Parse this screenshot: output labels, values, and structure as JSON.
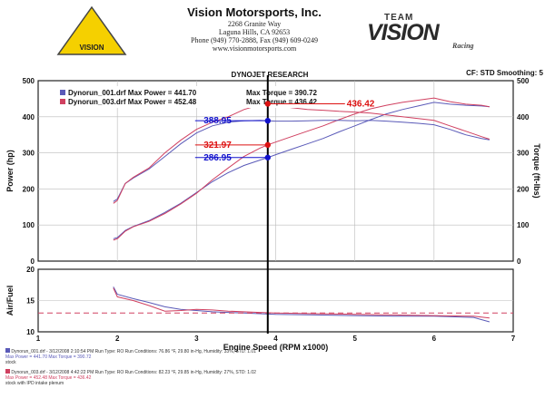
{
  "header": {
    "company": "Vision Motorsports, Inc.",
    "address1": "2268 Granite Way",
    "address2": "Laguna Hills, CA 92653",
    "phone": "Phone (949) 770-2888, Fax (949) 609-0249",
    "web": "www.visionmotorsports.com",
    "logo_text": "VISION",
    "team_label": "TEAM",
    "team_brand": "VISION",
    "team_sub": "Racing",
    "chart_source": "DYNOJET RESEARCH",
    "cf_info": "CF: STD  Smoothing: 5"
  },
  "chart_data": [
    {
      "type": "line",
      "title": "DYNOJET RESEARCH",
      "xlabel": "Engine Speed (RPM x1000)",
      "ylabel": "Power (hp)",
      "y2label": "Torque (ft-lbs)",
      "xlim": [
        1,
        7
      ],
      "ylim": [
        0,
        500
      ],
      "y2lim": [
        0,
        500
      ],
      "xticks": [
        1,
        2,
        3,
        4,
        5,
        6,
        7
      ],
      "yticks": [
        0,
        100,
        200,
        300,
        400,
        500
      ],
      "legend": [
        {
          "file": "Dynorun_001.drf",
          "max_power_label": "Max Power =",
          "max_power": "441.70",
          "max_torque_label": "Max Torque =",
          "max_torque": "390.72",
          "color": "#5a5ab8"
        },
        {
          "file": "Dynorun_003.drf",
          "max_power_label": "Max Power =",
          "max_power": "452.48",
          "max_torque_label": "Max Torque =",
          "max_torque": "436.42",
          "color": "#d04060"
        }
      ],
      "series": [
        {
          "name": "Dynorun_001.drf",
          "kind": "power",
          "color": "#5a5ab8",
          "x": [
            1.95,
            2.0,
            2.1,
            2.2,
            2.4,
            2.6,
            2.8,
            3.0,
            3.2,
            3.4,
            3.6,
            3.8,
            3.9,
            4.0,
            4.2,
            4.4,
            4.6,
            4.8,
            5.0,
            5.2,
            5.4,
            5.6,
            5.8,
            6.0,
            6.2,
            6.4,
            6.6,
            6.7
          ],
          "y": [
            62,
            65,
            85,
            96,
            112,
            135,
            160,
            190,
            220,
            245,
            265,
            280,
            287,
            295,
            310,
            325,
            340,
            358,
            375,
            392,
            408,
            420,
            430,
            440,
            435,
            432,
            430,
            428
          ]
        },
        {
          "name": "Dynorun_003.drf",
          "kind": "power",
          "color": "#d04060",
          "x": [
            1.95,
            2.0,
            2.1,
            2.2,
            2.4,
            2.6,
            2.8,
            3.0,
            3.2,
            3.4,
            3.6,
            3.8,
            3.9,
            4.0,
            4.2,
            4.4,
            4.6,
            4.8,
            5.0,
            5.2,
            5.4,
            5.6,
            5.8,
            6.0,
            6.2,
            6.4,
            6.6,
            6.7
          ],
          "y": [
            58,
            62,
            83,
            95,
            110,
            132,
            158,
            188,
            225,
            258,
            290,
            313,
            322,
            330,
            345,
            360,
            375,
            392,
            408,
            422,
            432,
            440,
            446,
            452,
            442,
            435,
            432,
            428
          ]
        },
        {
          "name": "Dynorun_001.drf",
          "kind": "torque",
          "color": "#5a5ab8",
          "x": [
            1.95,
            2.0,
            2.1,
            2.2,
            2.4,
            2.6,
            2.8,
            3.0,
            3.2,
            3.4,
            3.6,
            3.8,
            3.9,
            4.0,
            4.2,
            4.4,
            4.6,
            4.8,
            5.0,
            5.2,
            5.4,
            5.6,
            5.8,
            6.0,
            6.2,
            6.4,
            6.6,
            6.7
          ],
          "y": [
            165,
            172,
            215,
            230,
            255,
            290,
            325,
            355,
            375,
            385,
            389,
            390,
            389,
            388,
            388,
            389,
            390,
            390,
            389,
            390,
            388,
            385,
            382,
            378,
            365,
            350,
            340,
            336
          ]
        },
        {
          "name": "Dynorun_003.drf",
          "kind": "torque",
          "color": "#d04060",
          "x": [
            1.95,
            2.0,
            2.1,
            2.2,
            2.4,
            2.6,
            2.8,
            3.0,
            3.2,
            3.4,
            3.6,
            3.8,
            3.9,
            4.0,
            4.2,
            4.4,
            4.6,
            4.8,
            5.0,
            5.2,
            5.4,
            5.6,
            5.8,
            6.0,
            6.2,
            6.4,
            6.6,
            6.7
          ],
          "y": [
            160,
            168,
            215,
            232,
            258,
            300,
            335,
            365,
            385,
            400,
            420,
            433,
            436,
            432,
            425,
            420,
            418,
            415,
            413,
            410,
            405,
            400,
            395,
            390,
            375,
            360,
            345,
            338
          ]
        }
      ],
      "cursor_x": 3.9,
      "markers": [
        {
          "label": "436.42",
          "value": 436,
          "color": "#dd1111"
        },
        {
          "label": "388.95",
          "value": 389,
          "color": "#1111cc"
        },
        {
          "label": "321.97",
          "value": 322,
          "color": "#dd1111"
        },
        {
          "label": "286.95",
          "value": 287,
          "color": "#1111cc"
        }
      ],
      "grid": true
    },
    {
      "type": "line",
      "ylabel": "Air/Fuel",
      "xlim": [
        1,
        7
      ],
      "ylim": [
        10,
        20
      ],
      "yticks": [
        10,
        15,
        20
      ],
      "reference_line": 13,
      "series": [
        {
          "name": "Dynorun_001.drf",
          "color": "#5a5ab8",
          "x": [
            1.95,
            2.0,
            2.2,
            2.4,
            2.6,
            2.8,
            3.0,
            3.2,
            3.4,
            3.6,
            3.8,
            4.0,
            4.5,
            5.0,
            5.5,
            6.0,
            6.5,
            6.7
          ],
          "y": [
            17.2,
            16.0,
            15.3,
            14.7,
            14.0,
            13.6,
            13.4,
            13.2,
            13.1,
            13.0,
            12.9,
            12.8,
            12.7,
            12.6,
            12.5,
            12.5,
            12.3,
            11.6
          ]
        },
        {
          "name": "Dynorun_003.drf",
          "color": "#d04060",
          "x": [
            1.95,
            2.0,
            2.2,
            2.4,
            2.6,
            2.8,
            3.0,
            3.2,
            3.4,
            3.6,
            3.8,
            4.0,
            4.5,
            5.0,
            5.5,
            6.0,
            6.5,
            6.7
          ],
          "y": [
            17.0,
            15.6,
            15.0,
            14.2,
            13.3,
            13.4,
            13.6,
            13.5,
            13.3,
            13.2,
            13.1,
            13.0,
            12.9,
            12.8,
            12.7,
            12.6,
            12.5,
            12.2
          ]
        }
      ],
      "grid": true
    }
  ],
  "footer": [
    {
      "line1": "Dynorun_001.drf - 3/12/2008 2:10:54 PM   Run Type: RO   Run Conditions: 76.86 °F, 29.80 in-Hg,   Humidity: 33%, STD: 1.01",
      "line2": "Max Power = 441.70      Max Torque = 390.72",
      "line3": "stock",
      "color": "#5a5ab8"
    },
    {
      "line1": "Dynorun_003.drf - 3/12/2008 4:42:22 PM   Run Type: RO   Run Conditions: 82.23 °F, 29.85 in-Hg,   Humidity: 27%, STD: 1.02",
      "line2": "Max Power = 452.48      Max Torque = 436.42",
      "line3": "stock with IPD intake plenum",
      "color": "#d04060"
    }
  ]
}
